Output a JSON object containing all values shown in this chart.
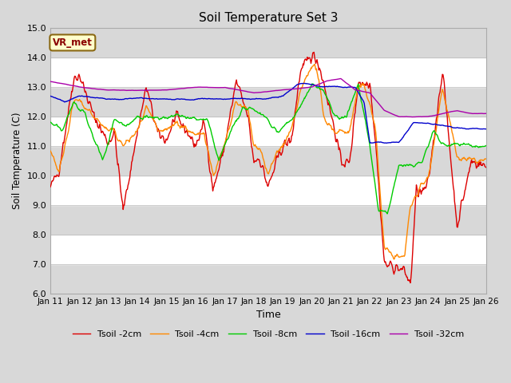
{
  "title": "Soil Temperature Set 3",
  "xlabel": "Time",
  "ylabel": "Soil Temperature (C)",
  "ylim": [
    6.0,
    15.0
  ],
  "yticks": [
    6.0,
    7.0,
    8.0,
    9.0,
    10.0,
    11.0,
    12.0,
    13.0,
    14.0,
    15.0
  ],
  "xtick_labels": [
    "Jan 11",
    "Jan 12",
    "Jan 13",
    "Jan 14",
    "Jan 15",
    "Jan 16",
    "Jan 17",
    "Jan 18",
    "Jan 19",
    "Jan 20",
    "Jan 21",
    "Jan 22",
    "Jan 23",
    "Jan 24",
    "Jan 25",
    "Jan 26"
  ],
  "legend_labels": [
    "Tsoil -2cm",
    "Tsoil -4cm",
    "Tsoil -8cm",
    "Tsoil -16cm",
    "Tsoil -32cm"
  ],
  "line_colors": [
    "#dd0000",
    "#ff8800",
    "#00cc00",
    "#0000cc",
    "#aa00aa"
  ],
  "line_width": 1.0,
  "annotation_text": "VR_met",
  "background_color": "#d8d8d8",
  "plot_bg_color": "#d8d8d8",
  "band_color_grey": "#d8d8d8",
  "band_color_white": "#ffffff",
  "figsize": [
    6.4,
    4.8
  ],
  "dpi": 100
}
